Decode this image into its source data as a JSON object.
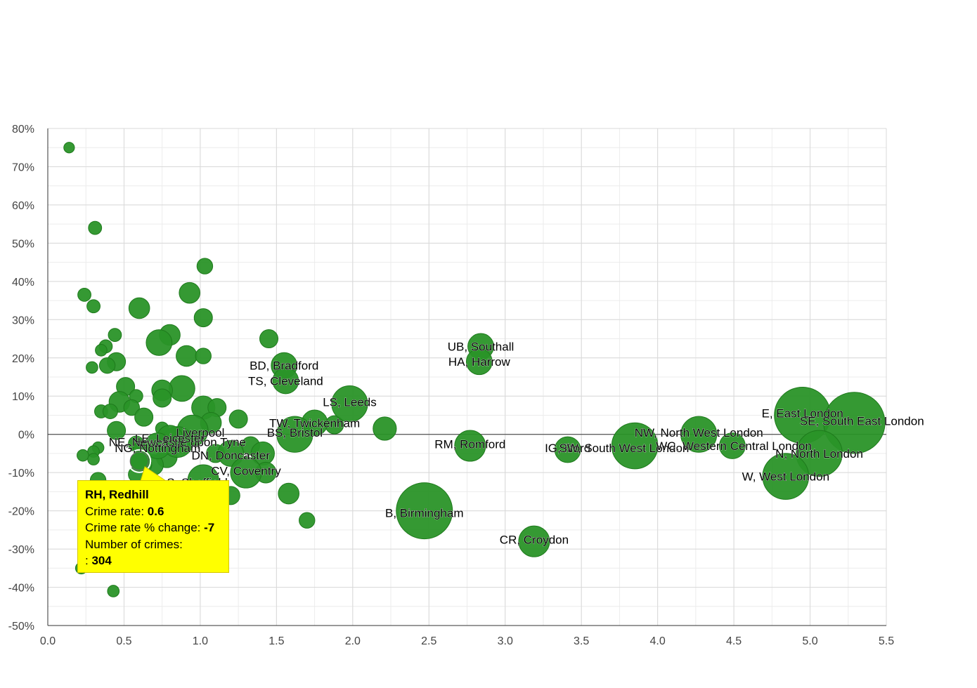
{
  "chart_data": {
    "type": "scatter",
    "subtype": "bubble",
    "title": "",
    "xlabel": "",
    "ylabel": "",
    "xlim": [
      0,
      5.5
    ],
    "ylim": [
      -50,
      80
    ],
    "x_ticks": [
      "0.0",
      "0.5",
      "1.0",
      "1.5",
      "2.0",
      "2.5",
      "3.0",
      "3.5",
      "4.0",
      "4.5",
      "5.0",
      "5.5"
    ],
    "y_ticks": [
      "80%",
      "70%",
      "60%",
      "50%",
      "40%",
      "30%",
      "20%",
      "10%",
      "0%",
      "-10%",
      "-20%",
      "-30%",
      "-40%",
      "-50%"
    ],
    "grid": true,
    "colors": {
      "bubble": "#2a9428",
      "bubble_stroke": "#1e7a1c",
      "tooltip_bg": "#ffff00",
      "grid": "#d9d9d9",
      "zero_line": "#333333"
    },
    "labeled_points": [
      {
        "label": "UB, Southall",
        "x": 2.84,
        "y": 23,
        "size": 4,
        "lx": 2.84,
        "ly": 23
      },
      {
        "label": "HA, Harrow",
        "x": 2.83,
        "y": 19,
        "size": 4,
        "lx": 2.83,
        "ly": 19
      },
      {
        "label": "BD, Bradford",
        "x": 1.55,
        "y": 18,
        "size": 4,
        "lx": 1.55,
        "ly": 18
      },
      {
        "label": "TS, Cleveland",
        "x": 1.56,
        "y": 14,
        "size": 4,
        "lx": 1.56,
        "ly": 14
      },
      {
        "label": "LS, Leeds",
        "x": 1.98,
        "y": 8,
        "size": 6,
        "lx": 1.98,
        "ly": 8.5
      },
      {
        "label": "TW, Twickenham",
        "x": 1.75,
        "y": 3,
        "size": 4,
        "lx": 1.75,
        "ly": 3
      },
      {
        "label": "BS, Bristol",
        "x": 1.62,
        "y": 0,
        "size": 6,
        "lx": 1.62,
        "ly": 0.5
      },
      {
        "label": "Liverpool",
        "x": 0.95,
        "y": 1,
        "size": 5,
        "lx": 1.0,
        "ly": 0.5
      },
      {
        "label": "NE, Newcastle upon Tyne",
        "x": 0.85,
        "y": -2,
        "size": 5,
        "lx": 0.85,
        "ly": -2
      },
      {
        "label": "LE, Leicester",
        "x": 0.8,
        "y": -1,
        "size": 4,
        "lx": 0.8,
        "ly": -1
      },
      {
        "label": "NG, Nottingham",
        "x": 0.72,
        "y": -3,
        "size": 4,
        "lx": 0.72,
        "ly": -3.5
      },
      {
        "label": "DN, Doncaster",
        "x": 1.2,
        "y": -5,
        "size": 4,
        "lx": 1.2,
        "ly": -5.5
      },
      {
        "label": "CV, Coventry",
        "x": 1.3,
        "y": -10,
        "size": 5,
        "lx": 1.3,
        "ly": -9.5
      },
      {
        "label": "S, Sheffield",
        "x": 1.02,
        "y": -12,
        "size": 5,
        "lx": 0.98,
        "ly": -12.5
      },
      {
        "label": "RM, Romford",
        "x": 2.77,
        "y": -3,
        "size": 5,
        "lx": 2.77,
        "ly": -2.5
      },
      {
        "label": "B, Birmingham",
        "x": 2.47,
        "y": -20,
        "size": 10,
        "lx": 2.47,
        "ly": -20.5
      },
      {
        "label": "CR, Croydon",
        "x": 3.19,
        "y": -28,
        "size": 5,
        "lx": 3.19,
        "ly": -27.5
      },
      {
        "label": "IG, Ilford",
        "x": 3.41,
        "y": -4,
        "size": 4,
        "lx": 3.41,
        "ly": -3.5
      },
      {
        "label": "SW, South West London",
        "x": 3.85,
        "y": -3,
        "size": 8,
        "lx": 3.78,
        "ly": -3.5
      },
      {
        "label": "NW, North West London",
        "x": 4.27,
        "y": 0,
        "size": 6,
        "lx": 4.27,
        "ly": 0.5
      },
      {
        "label": "WC, Western Central London",
        "x": 4.49,
        "y": -3,
        "size": 4,
        "lx": 4.5,
        "ly": -3
      },
      {
        "label": "E, East London",
        "x": 4.95,
        "y": 5,
        "size": 10,
        "lx": 4.95,
        "ly": 5.5
      },
      {
        "label": "SE, South East London",
        "x": 5.29,
        "y": 3,
        "size": 11,
        "lx": 5.34,
        "ly": 3.5
      },
      {
        "label": "N, North London",
        "x": 5.06,
        "y": -5,
        "size": 8,
        "lx": 5.06,
        "ly": -5
      },
      {
        "label": "W, West London",
        "x": 4.84,
        "y": -11,
        "size": 8,
        "lx": 4.84,
        "ly": -11
      }
    ],
    "points": [
      {
        "x": 0.14,
        "y": 75,
        "size": 1
      },
      {
        "x": 0.31,
        "y": 54,
        "size": 1.5
      },
      {
        "x": 1.03,
        "y": 44,
        "size": 2
      },
      {
        "x": 0.24,
        "y": 36.5,
        "size": 1.5
      },
      {
        "x": 0.93,
        "y": 37,
        "size": 3
      },
      {
        "x": 0.3,
        "y": 33.5,
        "size": 1.5
      },
      {
        "x": 0.6,
        "y": 33,
        "size": 3
      },
      {
        "x": 1.02,
        "y": 30.5,
        "size": 2.5
      },
      {
        "x": 0.44,
        "y": 26,
        "size": 1.5
      },
      {
        "x": 0.8,
        "y": 26,
        "size": 3
      },
      {
        "x": 1.45,
        "y": 25,
        "size": 2.5
      },
      {
        "x": 0.73,
        "y": 24,
        "size": 4
      },
      {
        "x": 0.38,
        "y": 23,
        "size": 1.5
      },
      {
        "x": 0.35,
        "y": 22,
        "size": 1.2
      },
      {
        "x": 0.91,
        "y": 20.5,
        "size": 3
      },
      {
        "x": 1.02,
        "y": 20.5,
        "size": 2
      },
      {
        "x": 0.45,
        "y": 19,
        "size": 2.5
      },
      {
        "x": 0.39,
        "y": 18,
        "size": 2
      },
      {
        "x": 0.29,
        "y": 17.5,
        "size": 1.2
      },
      {
        "x": 0.88,
        "y": 12,
        "size": 4
      },
      {
        "x": 0.51,
        "y": 12.5,
        "size": 2.5
      },
      {
        "x": 0.75,
        "y": 11.5,
        "size": 3
      },
      {
        "x": 0.58,
        "y": 10,
        "size": 1.5
      },
      {
        "x": 0.75,
        "y": 9.5,
        "size": 2.5
      },
      {
        "x": 0.47,
        "y": 8.5,
        "size": 3
      },
      {
        "x": 1.02,
        "y": 7,
        "size": 3.5
      },
      {
        "x": 1.11,
        "y": 7,
        "size": 2.5
      },
      {
        "x": 0.55,
        "y": 7,
        "size": 2
      },
      {
        "x": 0.35,
        "y": 6,
        "size": 1.5
      },
      {
        "x": 0.41,
        "y": 6,
        "size": 1.8
      },
      {
        "x": 0.63,
        "y": 4.5,
        "size": 2.5
      },
      {
        "x": 1.25,
        "y": 4,
        "size": 2.5
      },
      {
        "x": 1.07,
        "y": 3,
        "size": 3
      },
      {
        "x": 1.88,
        "y": 2.5,
        "size": 2.5
      },
      {
        "x": 2.21,
        "y": 1.5,
        "size": 3.5
      },
      {
        "x": 0.75,
        "y": 1.5,
        "size": 1.5
      },
      {
        "x": 0.45,
        "y": 1,
        "size": 2.5
      },
      {
        "x": 0.58,
        "y": -2.5,
        "size": 2
      },
      {
        "x": 0.62,
        "y": -4,
        "size": 2.5
      },
      {
        "x": 0.33,
        "y": -3.5,
        "size": 1.2
      },
      {
        "x": 0.3,
        "y": -4.5,
        "size": 1.2
      },
      {
        "x": 0.23,
        "y": -5.5,
        "size": 1.2
      },
      {
        "x": 0.3,
        "y": -6.5,
        "size": 1.2
      },
      {
        "x": 0.78,
        "y": -6,
        "size": 3
      },
      {
        "x": 1.1,
        "y": -5,
        "size": 2.5
      },
      {
        "x": 1.33,
        "y": -3,
        "size": 2.5
      },
      {
        "x": 1.41,
        "y": -5,
        "size": 3.5
      },
      {
        "x": 0.89,
        "y": -2.5,
        "size": 2.5
      },
      {
        "x": 0.69,
        "y": -8,
        "size": 3
      },
      {
        "x": 0.63,
        "y": -8,
        "size": 2
      },
      {
        "x": 0.58,
        "y": -10.5,
        "size": 2
      },
      {
        "x": 1.43,
        "y": -10,
        "size": 3
      },
      {
        "x": 0.33,
        "y": -12,
        "size": 2
      },
      {
        "x": 1.2,
        "y": -16,
        "size": 2.5
      },
      {
        "x": 1.58,
        "y": -15.5,
        "size": 3
      },
      {
        "x": 1.7,
        "y": -22.5,
        "size": 2
      },
      {
        "x": 0.22,
        "y": -35,
        "size": 1.2
      },
      {
        "x": 0.43,
        "y": -41,
        "size": 1.2
      }
    ],
    "highlighted_point": {
      "label": "RH, Redhill",
      "x": 0.6,
      "y": -7,
      "crimes": 304,
      "size": 2.5
    },
    "tooltip": {
      "title": "RH, Redhill",
      "rate_label": "Crime rate: ",
      "rate_value": "0.6",
      "change_label": "Crime rate % change: ",
      "change_value": "-7",
      "count_label": "Number of crimes:",
      "count_prefix": ": ",
      "count_value": "304"
    }
  }
}
